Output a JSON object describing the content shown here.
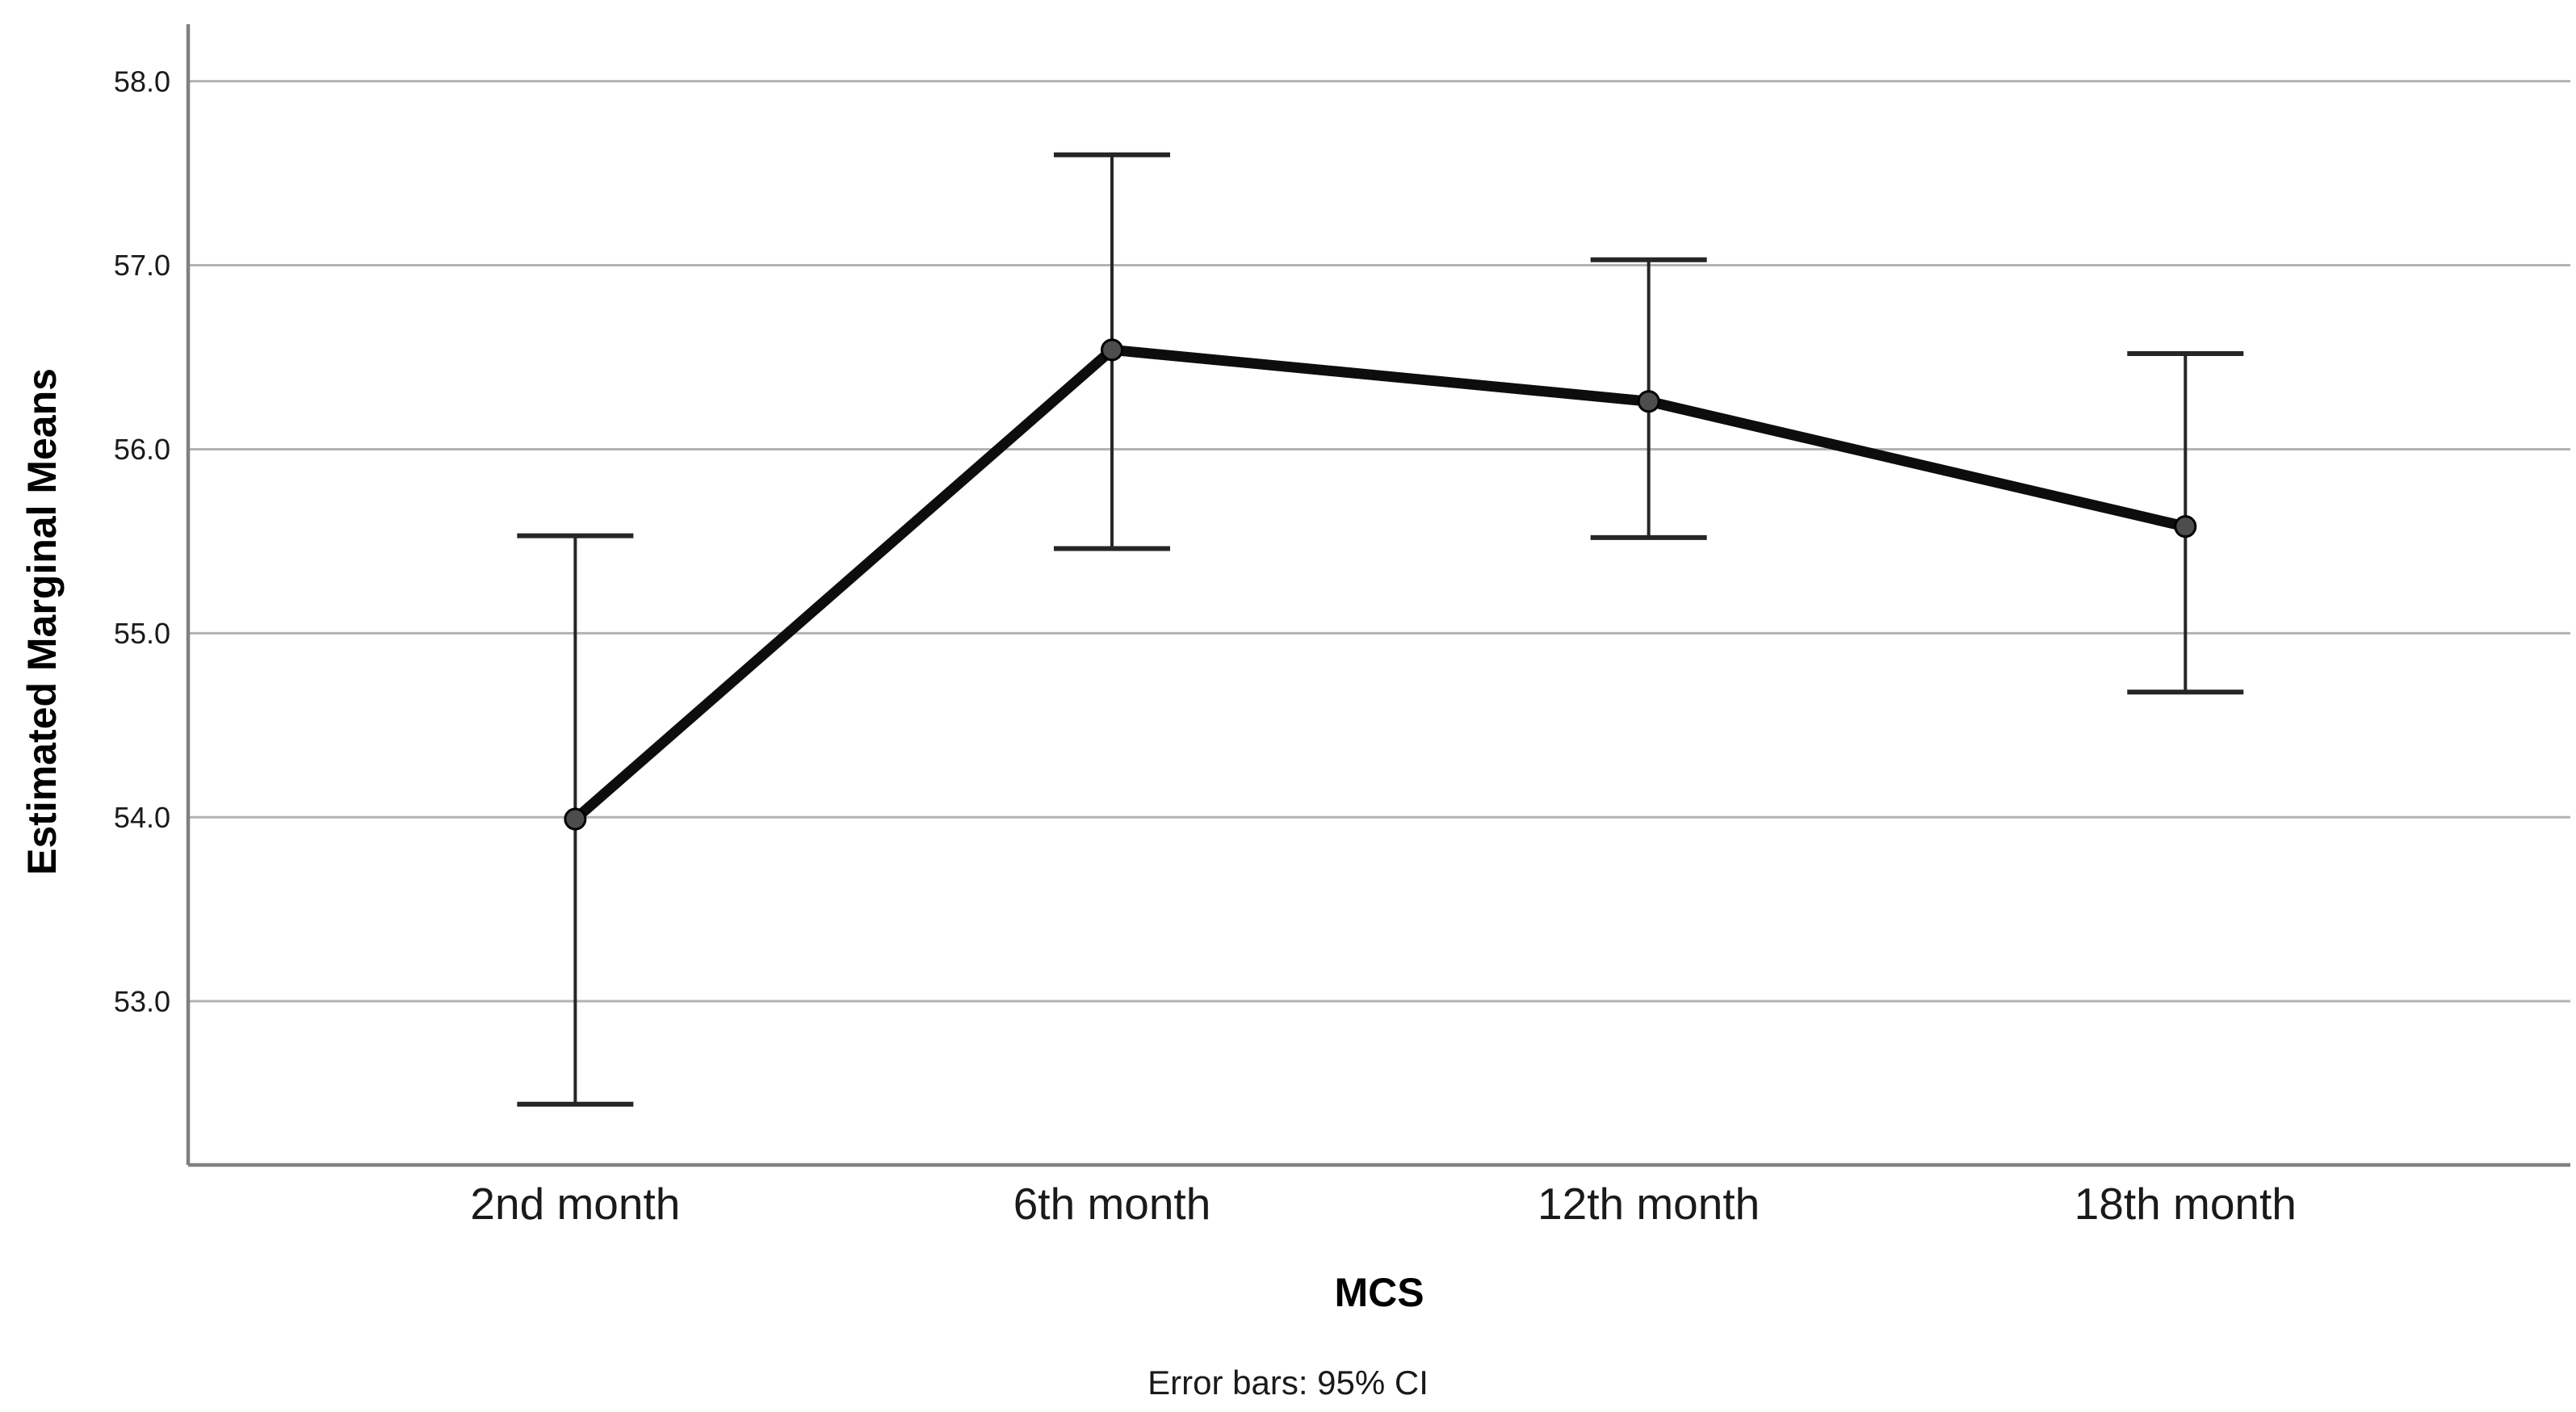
{
  "chart_data": {
    "type": "line",
    "title": "",
    "categories": [
      "2nd month",
      "6th month",
      "12th month",
      "18th month"
    ],
    "series": [
      {
        "name": "Estimated Marginal Means",
        "values": [
          53.99,
          56.54,
          56.26,
          55.58
        ],
        "ci_low": [
          52.44,
          55.46,
          55.52,
          54.68
        ],
        "ci_high": [
          55.53,
          57.6,
          57.03,
          56.52
        ]
      }
    ],
    "xlabel": "MCS",
    "ylabel": "Estimated Marginal Means",
    "caption": "Error bars: 95% CI",
    "error_bars": "95% CI",
    "ytick_labels": [
      "53.0",
      "54.0",
      "55.0",
      "56.0",
      "57.0",
      "58.0"
    ],
    "yticks": [
      53.0,
      54.0,
      55.0,
      56.0,
      57.0,
      58.0
    ],
    "ylim": [
      52.11,
      58.31
    ],
    "grid": "horizontal",
    "legend": "none",
    "colors": {
      "series_line": "#0d0d0d",
      "marker_fill": "#4d4d4d",
      "marker_stroke": "#000000",
      "error_bar": "#262626",
      "gridline": "#b3b3b3",
      "axis_line": "#808080",
      "tick_label": "#1a1a1a"
    }
  }
}
